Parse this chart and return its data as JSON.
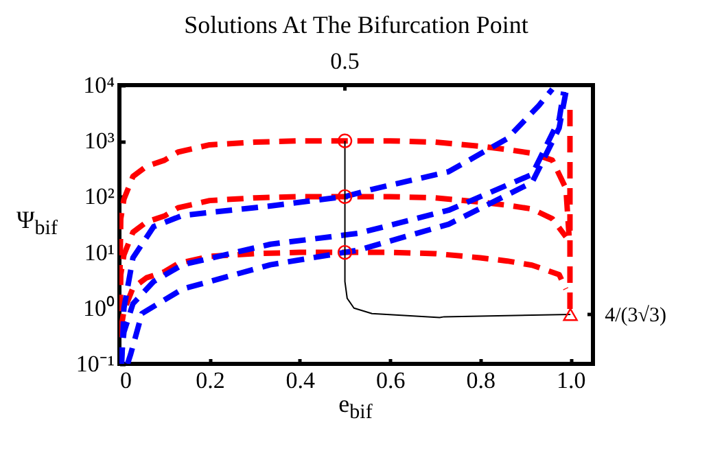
{
  "chart_data": {
    "type": "line",
    "title": "Solutions At The Bifurcation Point",
    "xlabel": "e$_{bif}$",
    "ylabel": "Ψ$_{bif}$",
    "xlim": [
      0,
      1.05
    ],
    "xticks": [
      0,
      0.2,
      0.4,
      0.6,
      0.8,
      {
        "value": 1,
        "label": "1.0"
      }
    ],
    "ylim": [
      0.1,
      10000
    ],
    "yticks": [
      {
        "value": 0.1,
        "label": "10⁻¹"
      },
      {
        "value": 1,
        "label": "10⁰"
      },
      {
        "value": 10,
        "label": "10¹"
      },
      {
        "value": 100,
        "label": "10²"
      },
      {
        "value": 1000,
        "label": "10³"
      },
      {
        "value": 10000,
        "label": "10⁴"
      }
    ],
    "annotations": [
      {
        "text": "0.5",
        "x": 0.5
      },
      {
        "text": "4/(3√3)",
        "x": 1.0,
        "y": 0.7698
      }
    ],
    "log": true,
    "series": [
      {
        "color": "#ff0000",
        "line_style": "dashed",
        "x": [
          0.001,
          0.003,
          0.01,
          0.03,
          0.06,
          0.1,
          0.13,
          0.2,
          0.3,
          0.4,
          0.5,
          0.6,
          0.7,
          0.8,
          0.86,
          0.915,
          0.96,
          0.99,
          0.997
        ],
        "values": [
          3,
          40,
          90,
          230,
          350,
          450,
          630,
          850,
          950,
          1000,
          1000,
          1000,
          950,
          800,
          700,
          600,
          450,
          140,
          20
        ]
      },
      {
        "color": "#ff0000",
        "line_style": "dashed",
        "x": [
          0.001,
          0.003,
          0.01,
          0.03,
          0.06,
          0.1,
          0.13,
          0.2,
          0.3,
          0.4,
          0.5,
          0.6,
          0.7,
          0.8,
          0.86,
          0.915,
          0.96,
          0.99
        ],
        "values": [
          0.3,
          4,
          9,
          23,
          35,
          45,
          63,
          85,
          95,
          100,
          100,
          100,
          95,
          80,
          70,
          60,
          40,
          19
        ]
      },
      {
        "color": "#ff0000",
        "line_style": "dashed",
        "x": [
          0.003,
          0.01,
          0.03,
          0.06,
          0.1,
          0.13,
          0.2,
          0.3,
          0.4,
          0.5,
          0.6,
          0.7,
          0.8,
          0.86,
          0.915,
          0.975,
          0.99
        ],
        "values": [
          0.4,
          0.9,
          2.3,
          3.5,
          4.5,
          6.3,
          8.5,
          9.5,
          10,
          10,
          10,
          9.5,
          8,
          7,
          5.9,
          4,
          2.2
        ]
      },
      {
        "color": "#ff0000",
        "line_style": "dashed",
        "x": [
          0.999,
          0.999
        ],
        "values": [
          3600,
          0.9
        ]
      },
      {
        "color": "#0000ff",
        "line_style": "dashed",
        "x": [
          0.005,
          0.01,
          0.03,
          0.076,
          0.14,
          0.335,
          0.5,
          0.56,
          0.73,
          0.86,
          0.93,
          0.96
        ],
        "values": [
          0.1,
          1,
          8,
          29,
          46,
          68,
          100,
          135,
          280,
          1100,
          4300,
          8500
        ]
      },
      {
        "color": "#0000ff",
        "line_style": "dashed",
        "x": [
          0.003,
          0.01,
          0.03,
          0.076,
          0.14,
          0.335,
          0.53,
          0.73,
          0.915,
          0.975,
          0.985
        ],
        "values": [
          0.1,
          0.37,
          1.2,
          3,
          6,
          14,
          22,
          57,
          250,
          2400,
          7600
        ]
      },
      {
        "color": "#0000ff",
        "line_style": "dashed",
        "x": [
          0.018,
          0.025,
          0.05,
          0.14,
          0.335,
          0.53,
          0.73,
          0.915,
          0.975,
          0.993
        ],
        "values": [
          0.1,
          0.15,
          0.8,
          2.2,
          6,
          11,
          32,
          180,
          1700,
          10000
        ]
      },
      {
        "color": "#000000",
        "line_style": "solid",
        "x": [
          0.5,
          0.5,
          0.5,
          0.505,
          0.52,
          0.56,
          0.71,
          0.72,
          1.0
        ],
        "values": [
          1000,
          10,
          3,
          1.5,
          1,
          0.8,
          0.68,
          0.7,
          0.77
        ]
      },
      {
        "type": "scatter",
        "marker": "circle",
        "color": "#ff0000",
        "x": [
          0.5,
          0.5,
          0.5
        ],
        "values": [
          1000,
          100,
          10
        ]
      },
      {
        "type": "scatter",
        "marker": "triangle",
        "color": "#ff0000",
        "x": [
          1.0
        ],
        "values": [
          0.7698
        ]
      }
    ]
  }
}
